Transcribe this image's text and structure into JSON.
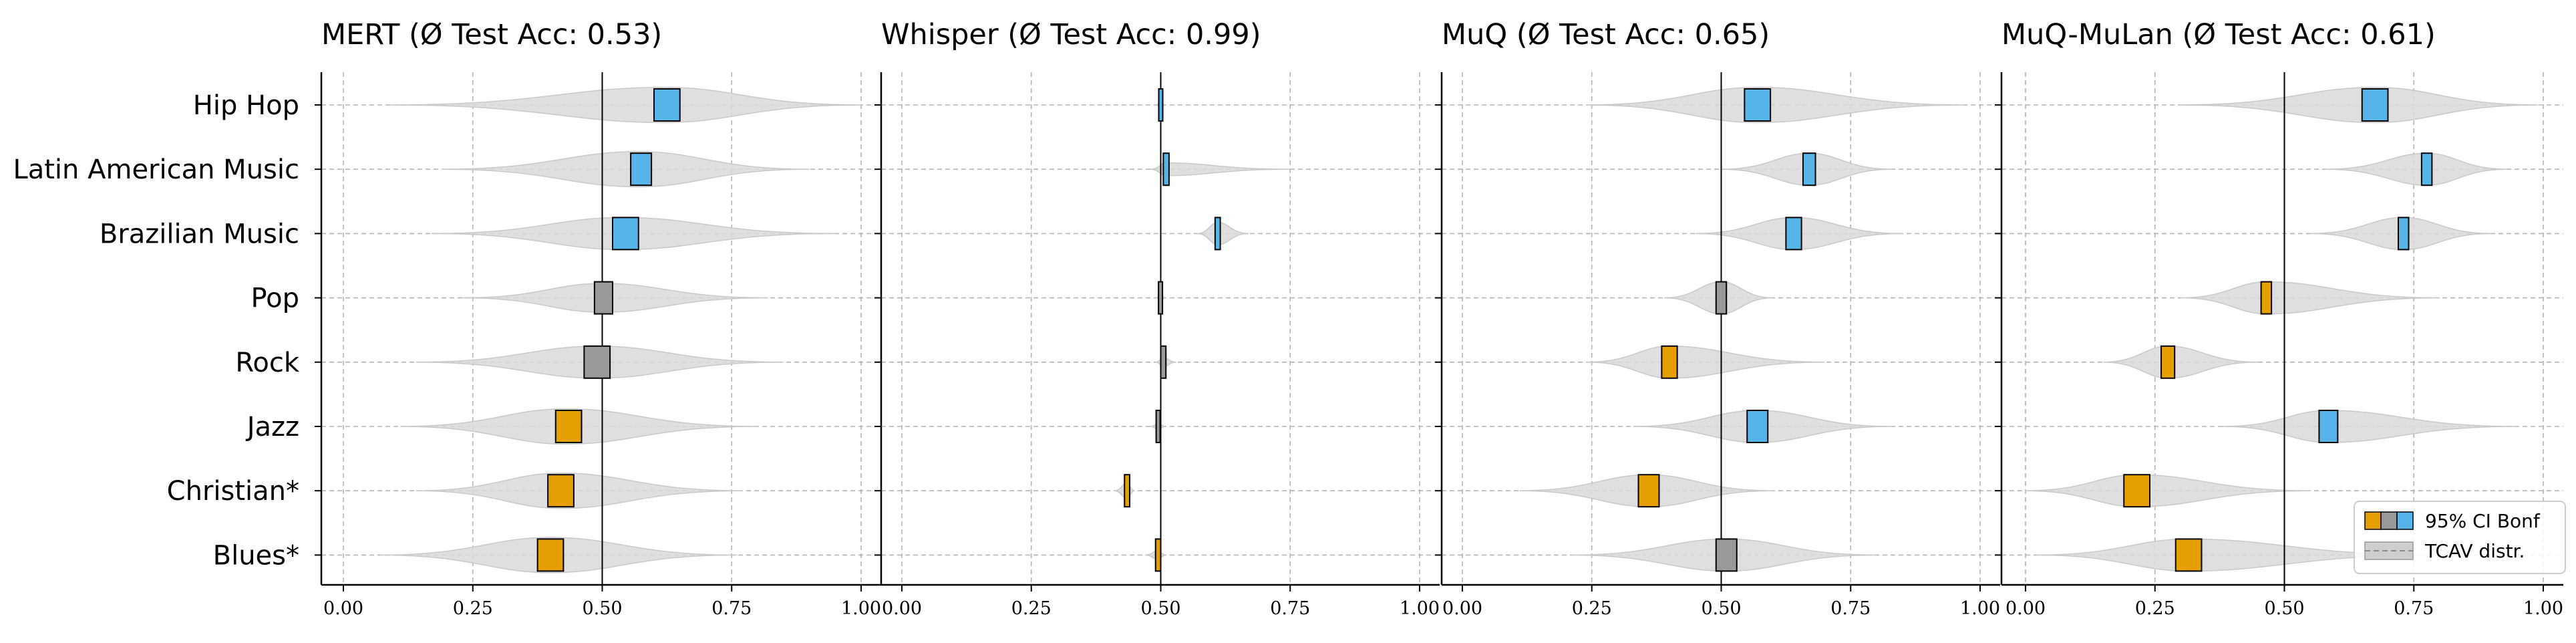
{
  "chart_data": {
    "type": "violin",
    "categories": [
      "Hip Hop",
      "Latin American Music",
      "Brazilian Music",
      "Pop",
      "Rock",
      "Jazz",
      "Christian*",
      "Blues*"
    ],
    "xlim": [
      0,
      1
    ],
    "xticks": [
      "0.00",
      "0.25",
      "0.50",
      "0.75",
      "1.00"
    ],
    "reference_line": 0.5,
    "grid": true,
    "colors": {
      "above": "#56B4E9",
      "neutral": "#999999",
      "below": "#E69F00",
      "violin": "#d9d9d9"
    },
    "panels": [
      {
        "title": "MERT (Ø Test Acc: 0.53)",
        "items": [
          {
            "cat": "Hip Hop",
            "center": 0.625,
            "ci_low": 0.6,
            "ci_high": 0.65,
            "status": "above",
            "v_lo": 0.09,
            "v_hi": 1.0,
            "v_peak": 0.62,
            "v_width": 0.55
          },
          {
            "cat": "Latin American Music",
            "center": 0.575,
            "ci_low": 0.555,
            "ci_high": 0.595,
            "status": "above",
            "v_lo": 0.19,
            "v_hi": 0.9,
            "v_peak": 0.57,
            "v_width": 0.55
          },
          {
            "cat": "Brazilian Music",
            "center": 0.545,
            "ci_low": 0.52,
            "ci_high": 0.57,
            "status": "above",
            "v_lo": 0.17,
            "v_hi": 0.95,
            "v_peak": 0.54,
            "v_width": 0.5
          },
          {
            "cat": "Pop",
            "center": 0.5,
            "ci_low": 0.485,
            "ci_high": 0.52,
            "status": "neutral",
            "v_lo": 0.23,
            "v_hi": 0.82,
            "v_peak": 0.5,
            "v_width": 0.45
          },
          {
            "cat": "Rock",
            "center": 0.49,
            "ci_low": 0.465,
            "ci_high": 0.515,
            "status": "neutral",
            "v_lo": 0.14,
            "v_hi": 0.85,
            "v_peak": 0.49,
            "v_width": 0.5
          },
          {
            "cat": "Jazz",
            "center": 0.435,
            "ci_low": 0.41,
            "ci_high": 0.46,
            "status": "below",
            "v_lo": 0.11,
            "v_hi": 0.8,
            "v_peak": 0.43,
            "v_width": 0.55
          },
          {
            "cat": "Christian*",
            "center": 0.42,
            "ci_low": 0.395,
            "ci_high": 0.445,
            "status": "below",
            "v_lo": 0.14,
            "v_hi": 0.77,
            "v_peak": 0.42,
            "v_width": 0.55
          },
          {
            "cat": "Blues*",
            "center": 0.4,
            "ci_low": 0.375,
            "ci_high": 0.425,
            "status": "below",
            "v_lo": 0.07,
            "v_hi": 0.76,
            "v_peak": 0.4,
            "v_width": 0.55
          }
        ]
      },
      {
        "title": "Whisper (Ø Test Acc: 0.99)",
        "items": [
          {
            "cat": "Hip Hop",
            "center": 0.5,
            "ci_low": 0.497,
            "ci_high": 0.503,
            "status": "above",
            "v_lo": 0.49,
            "v_hi": 0.51,
            "v_peak": 0.5,
            "v_width": 0.08
          },
          {
            "cat": "Latin American Music",
            "center": 0.51,
            "ci_low": 0.505,
            "ci_high": 0.516,
            "status": "above",
            "v_lo": 0.48,
            "v_hi": 0.75,
            "v_peak": 0.51,
            "v_width": 0.2
          },
          {
            "cat": "Brazilian Music",
            "center": 0.61,
            "ci_low": 0.605,
            "ci_high": 0.615,
            "status": "above",
            "v_lo": 0.57,
            "v_hi": 0.67,
            "v_peak": 0.61,
            "v_width": 0.35
          },
          {
            "cat": "Pop",
            "center": 0.5,
            "ci_low": 0.497,
            "ci_high": 0.502,
            "status": "neutral",
            "v_lo": 0.49,
            "v_hi": 0.51,
            "v_peak": 0.5,
            "v_width": 0.08
          },
          {
            "cat": "Rock",
            "center": 0.505,
            "ci_low": 0.5,
            "ci_high": 0.51,
            "status": "neutral",
            "v_lo": 0.49,
            "v_hi": 0.53,
            "v_peak": 0.505,
            "v_width": 0.15
          },
          {
            "cat": "Jazz",
            "center": 0.495,
            "ci_low": 0.492,
            "ci_high": 0.498,
            "status": "neutral",
            "v_lo": 0.48,
            "v_hi": 0.51,
            "v_peak": 0.495,
            "v_width": 0.1
          },
          {
            "cat": "Christian*",
            "center": 0.435,
            "ci_low": 0.43,
            "ci_high": 0.44,
            "status": "below",
            "v_lo": 0.41,
            "v_hi": 0.45,
            "v_peak": 0.435,
            "v_width": 0.25
          },
          {
            "cat": "Blues*",
            "center": 0.495,
            "ci_low": 0.49,
            "ci_high": 0.5,
            "status": "below",
            "v_lo": 0.47,
            "v_hi": 0.51,
            "v_peak": 0.495,
            "v_width": 0.15
          }
        ]
      },
      {
        "title": "MuQ (Ø Test Acc: 0.65)",
        "items": [
          {
            "cat": "Hip Hop",
            "center": 0.57,
            "ci_low": 0.545,
            "ci_high": 0.595,
            "status": "above",
            "v_lo": 0.24,
            "v_hi": 0.97,
            "v_peak": 0.57,
            "v_width": 0.55
          },
          {
            "cat": "Latin American Music",
            "center": 0.67,
            "ci_low": 0.658,
            "ci_high": 0.682,
            "status": "above",
            "v_lo": 0.5,
            "v_hi": 0.83,
            "v_peak": 0.67,
            "v_width": 0.5
          },
          {
            "cat": "Brazilian Music",
            "center": 0.64,
            "ci_low": 0.625,
            "ci_high": 0.655,
            "status": "above",
            "v_lo": 0.45,
            "v_hi": 0.85,
            "v_peak": 0.64,
            "v_width": 0.5
          },
          {
            "cat": "Pop",
            "center": 0.5,
            "ci_low": 0.49,
            "ci_high": 0.51,
            "status": "neutral",
            "v_lo": 0.39,
            "v_hi": 0.6,
            "v_peak": 0.5,
            "v_width": 0.5
          },
          {
            "cat": "Rock",
            "center": 0.4,
            "ci_low": 0.385,
            "ci_high": 0.415,
            "status": "below",
            "v_lo": 0.24,
            "v_hi": 0.7,
            "v_peak": 0.4,
            "v_width": 0.5
          },
          {
            "cat": "Jazz",
            "center": 0.57,
            "ci_low": 0.55,
            "ci_high": 0.59,
            "status": "above",
            "v_lo": 0.33,
            "v_hi": 0.83,
            "v_peak": 0.57,
            "v_width": 0.5
          },
          {
            "cat": "Christian*",
            "center": 0.36,
            "ci_low": 0.34,
            "ci_high": 0.38,
            "status": "below",
            "v_lo": 0.11,
            "v_hi": 0.6,
            "v_peak": 0.36,
            "v_width": 0.5
          },
          {
            "cat": "Blues*",
            "center": 0.51,
            "ci_low": 0.49,
            "ci_high": 0.53,
            "status": "neutral",
            "v_lo": 0.21,
            "v_hi": 0.8,
            "v_peak": 0.51,
            "v_width": 0.5
          }
        ]
      },
      {
        "title": "MuQ-MuLan (Ø Test Acc: 0.61)",
        "items": [
          {
            "cat": "Hip Hop",
            "center": 0.675,
            "ci_low": 0.65,
            "ci_high": 0.7,
            "status": "above",
            "v_lo": 0.3,
            "v_hi": 0.99,
            "v_peak": 0.675,
            "v_width": 0.55
          },
          {
            "cat": "Latin American Music",
            "center": 0.775,
            "ci_low": 0.765,
            "ci_high": 0.785,
            "status": "above",
            "v_lo": 0.58,
            "v_hi": 0.93,
            "v_peak": 0.775,
            "v_width": 0.5
          },
          {
            "cat": "Brazilian Music",
            "center": 0.73,
            "ci_low": 0.72,
            "ci_high": 0.74,
            "status": "above",
            "v_lo": 0.55,
            "v_hi": 0.9,
            "v_peak": 0.73,
            "v_width": 0.5
          },
          {
            "cat": "Pop",
            "center": 0.465,
            "ci_low": 0.455,
            "ci_high": 0.475,
            "status": "below",
            "v_lo": 0.3,
            "v_hi": 0.8,
            "v_peak": 0.465,
            "v_width": 0.5
          },
          {
            "cat": "Rock",
            "center": 0.275,
            "ci_low": 0.262,
            "ci_high": 0.288,
            "status": "below",
            "v_lo": 0.15,
            "v_hi": 0.45,
            "v_peak": 0.275,
            "v_width": 0.5
          },
          {
            "cat": "Jazz",
            "center": 0.585,
            "ci_low": 0.567,
            "ci_high": 0.603,
            "status": "above",
            "v_lo": 0.38,
            "v_hi": 0.95,
            "v_peak": 0.585,
            "v_width": 0.5
          },
          {
            "cat": "Christian*",
            "center": 0.215,
            "ci_low": 0.19,
            "ci_high": 0.24,
            "status": "below",
            "v_lo": 0.0,
            "v_hi": 0.55,
            "v_peak": 0.215,
            "v_width": 0.5
          },
          {
            "cat": "Blues*",
            "center": 0.315,
            "ci_low": 0.29,
            "ci_high": 0.34,
            "status": "below",
            "v_lo": 0.02,
            "v_hi": 0.8,
            "v_peak": 0.315,
            "v_width": 0.5
          }
        ]
      }
    ],
    "legend": {
      "position": "bottom-right",
      "ci_label": "95% CI Bonf",
      "tcav_label": "TCAV distr."
    }
  }
}
